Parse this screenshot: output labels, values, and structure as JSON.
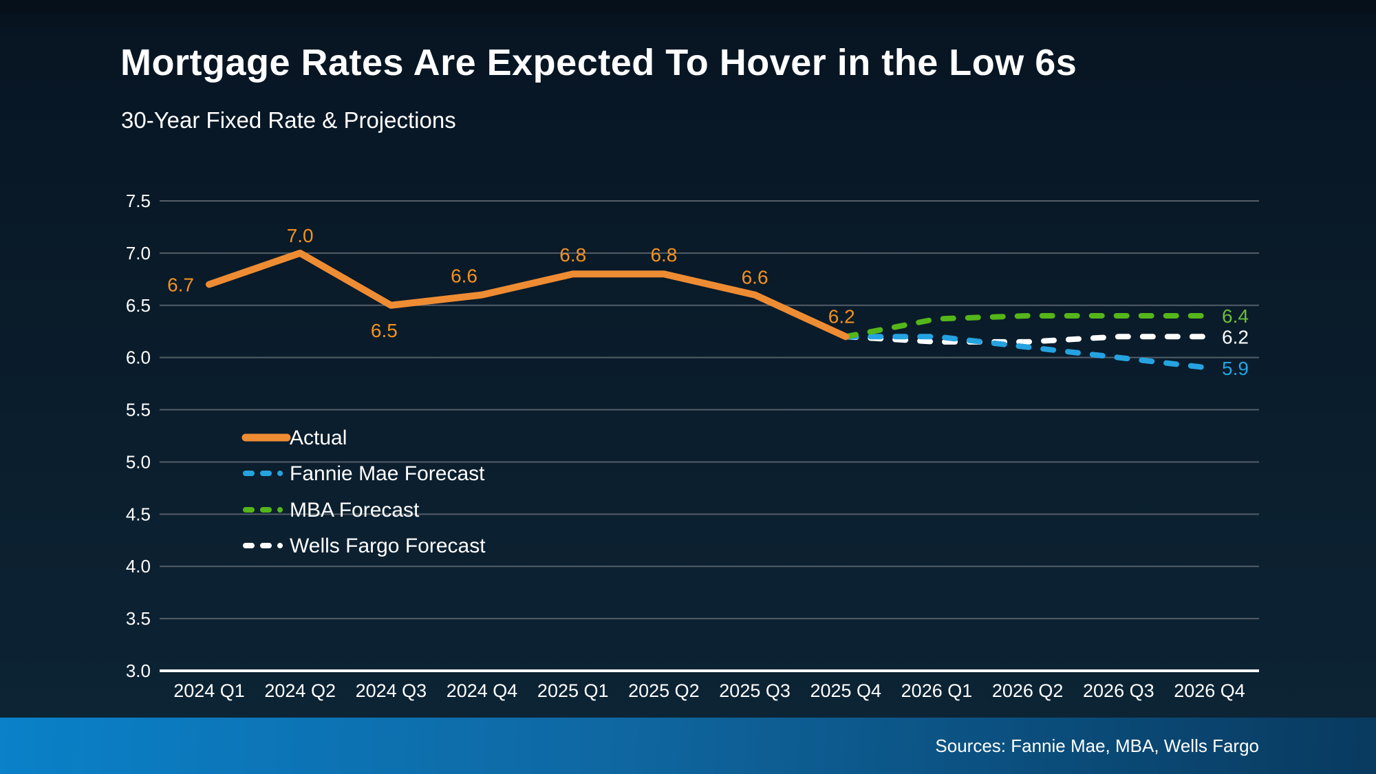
{
  "page": {
    "title": "Mortgage Rates Are Expected To Hover in the Low 6s",
    "subtitle": "30-Year Fixed Rate & Projections",
    "source": "Sources: Fannie Mae, MBA, Wells Fargo"
  },
  "colors": {
    "background_top": "#06121d",
    "background_bottom": "#0d2536",
    "gridline": "#545e68",
    "axis_line": "#ffffff",
    "tick_text": "#ffffff",
    "footer_left": "#0a81c9",
    "footer_right": "#093a5f",
    "actual_orange": "#ee8c33",
    "value_label_orange": "#f5921e",
    "fannie_blue": "#25a3e1",
    "mba_green": "#55b619",
    "wells_white": "#ffffff"
  },
  "chart_data": {
    "type": "line",
    "title": "Mortgage Rates Are Expected To Hover in the Low 6s",
    "subtitle": "30-Year Fixed Rate & Projections",
    "categories": [
      "2024 Q1",
      "2024 Q2",
      "2024 Q3",
      "2024 Q4",
      "2025 Q1",
      "2025 Q2",
      "2025 Q3",
      "2025 Q4",
      "2026 Q1",
      "2026 Q2",
      "2026 Q3",
      "2026 Q4"
    ],
    "ylim": [
      3.0,
      7.5
    ],
    "ytick_step": 0.5,
    "yticks": [
      "7.5",
      "7.0",
      "6.5",
      "6.0",
      "5.5",
      "5.0",
      "4.5",
      "4.0",
      "3.5",
      "3.0"
    ],
    "grid": true,
    "legend_position": "inside-left-middle",
    "series": [
      {
        "name": "Actual",
        "style": "solid",
        "color": "#ee8c33",
        "label_color": "#f5921e",
        "x_start_index": 0,
        "z": 4,
        "values": [
          6.7,
          7.0,
          6.5,
          6.6,
          6.8,
          6.8,
          6.6,
          6.2
        ],
        "point_labels": [
          {
            "text": "6.7",
            "dx": -22,
            "dy": 10,
            "anchor": "end"
          },
          {
            "text": "7.0",
            "dx": 0,
            "dy": -16,
            "anchor": "middle"
          },
          {
            "text": "6.5",
            "dx": -10,
            "dy": 46,
            "anchor": "middle"
          },
          {
            "text": "6.6",
            "dx": -26,
            "dy": -18,
            "anchor": "middle"
          },
          {
            "text": "6.8",
            "dx": 0,
            "dy": -18,
            "anchor": "middle"
          },
          {
            "text": "6.8",
            "dx": 0,
            "dy": -18,
            "anchor": "middle"
          },
          {
            "text": "6.6",
            "dx": 0,
            "dy": -16,
            "anchor": "middle"
          },
          {
            "text": "6.2",
            "dx": -6,
            "dy": -20,
            "anchor": "middle"
          }
        ]
      },
      {
        "name": "Fannie Mae Forecast",
        "style": "dashed",
        "color": "#25a3e1",
        "label_color": "#25a3e1",
        "x_start_index": 7,
        "z": 2,
        "values": [
          6.2,
          6.2,
          6.1,
          6.0,
          5.9
        ],
        "end_label": {
          "text": "5.9",
          "dx": 18,
          "dy": 10
        }
      },
      {
        "name": "MBA Forecast",
        "style": "dashed",
        "color": "#55b619",
        "label_color": "#6cbf3a",
        "x_start_index": 7,
        "z": 3,
        "values": [
          6.2,
          6.37,
          6.4,
          6.4,
          6.4
        ],
        "end_label": {
          "text": "6.4",
          "dx": 18,
          "dy": 10
        }
      },
      {
        "name": "Wells Fargo Forecast",
        "style": "dashed",
        "color": "#ffffff",
        "label_color": "#ffffff",
        "x_start_index": 7,
        "z": 1,
        "values": [
          6.2,
          6.15,
          6.15,
          6.2,
          6.2
        ],
        "end_label": {
          "text": "6.2",
          "dx": 18,
          "dy": 10
        }
      }
    ]
  }
}
